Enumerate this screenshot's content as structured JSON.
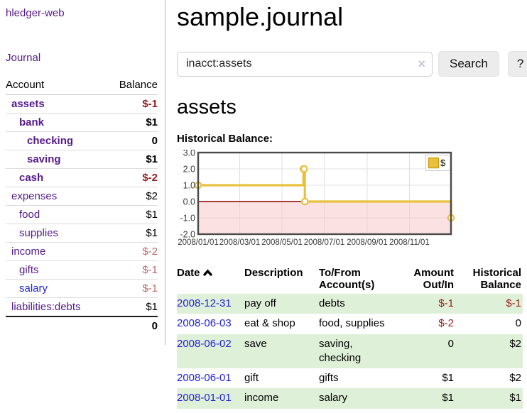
{
  "app": {
    "title": "hledger-web"
  },
  "colors": {
    "purple_link": "#551a8b",
    "blue_link": "#2222dd",
    "negative_strong": "#941f1f",
    "negative_soft": "#c06868",
    "row_stripe_green": "#dff0d8",
    "chart_series_yellow": "#e8c23e",
    "chart_negative_region": "#f8c8c8",
    "chart_zero_line": "#8b0000"
  },
  "sidebar": {
    "journal_link": "Journal",
    "accounts": {
      "headers": {
        "account": "Account",
        "balance": "Balance"
      },
      "rows": [
        {
          "name": "assets",
          "balance": "$-1"
        },
        {
          "name": "bank",
          "balance": "$1"
        },
        {
          "name": "checking",
          "balance": "0"
        },
        {
          "name": "saving",
          "balance": "$1"
        },
        {
          "name": "cash",
          "balance": "$-2"
        },
        {
          "name": "expenses",
          "balance": "$2"
        },
        {
          "name": "food",
          "balance": "$1"
        },
        {
          "name": "supplies",
          "balance": "$1"
        },
        {
          "name": "income",
          "balance": "$-2"
        },
        {
          "name": "gifts",
          "balance": "$-1"
        },
        {
          "name": "salary",
          "balance": "$-1"
        },
        {
          "name": "liabilities:debts",
          "balance": "$1"
        }
      ],
      "total": "0"
    }
  },
  "main": {
    "title": "sample.journal",
    "search": {
      "value": "inacct:assets",
      "clear_icon": "×",
      "search_label": "Search",
      "help_label": "?"
    },
    "account_heading": "assets",
    "chart_label": "Historical Balance:"
  },
  "chart_data": {
    "type": "line",
    "title": "Historical Balance",
    "step": true,
    "series": [
      {
        "name": "$",
        "x": [
          "2008-01-01",
          "2008-06-01",
          "2008-06-02",
          "2008-06-03",
          "2008-12-31"
        ],
        "y": [
          1,
          2,
          2,
          0,
          -1
        ]
      }
    ],
    "xticks": [
      "2008/01/01",
      "2008/03/01",
      "2008/05/01",
      "2008/07/01",
      "2008/09/01",
      "2008/11/01"
    ],
    "yticks": [
      "3.0",
      "2.0",
      "1.0",
      "0.0",
      "-1.0",
      "-2.0"
    ],
    "ylim": [
      -2,
      3
    ],
    "xlim": [
      "2008-01-01",
      "2008-12-31"
    ],
    "grid": true,
    "legend_position": "top-right",
    "legend": "$"
  },
  "register": {
    "headers": {
      "date": "Date",
      "description": "Description",
      "accounts": "To/From Account(s)",
      "amount": "Amount Out/In",
      "balance": "Historical Balance"
    },
    "rows": [
      {
        "date": "2008-12-31",
        "description": "pay off",
        "accounts": "debts",
        "amount": "$-1",
        "balance": "$-1"
      },
      {
        "date": "2008-06-03",
        "description": "eat & shop",
        "accounts": "food, supplies",
        "amount": "$-2",
        "balance": "0"
      },
      {
        "date": "2008-06-02",
        "description": "save",
        "accounts": "saving, checking",
        "amount": "0",
        "balance": "$2"
      },
      {
        "date": "2008-06-01",
        "description": "gift",
        "accounts": "gifts",
        "amount": "$1",
        "balance": "$2"
      },
      {
        "date": "2008-01-01",
        "description": "income",
        "accounts": "salary",
        "amount": "$1",
        "balance": "$1"
      }
    ]
  }
}
